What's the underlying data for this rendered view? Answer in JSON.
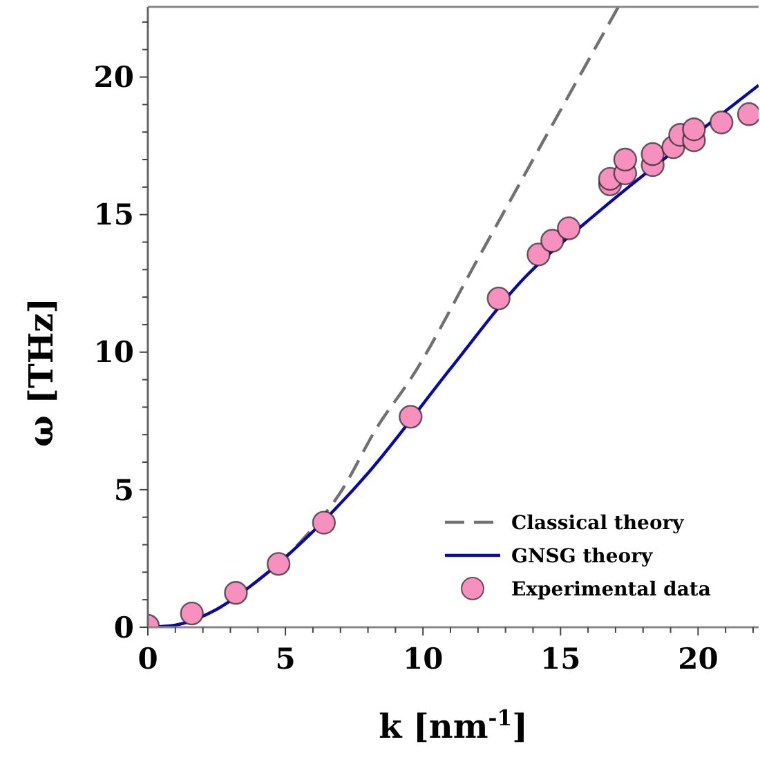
{
  "chart_data": {
    "type": "line",
    "xlabel": "k [nm$^{-1}$]",
    "ylabel": "ω [THz]",
    "xlim": [
      0,
      22.2
    ],
    "ylim": [
      0,
      22.55
    ],
    "xticks": [
      0,
      {
        "value": 1,
        "label": null
      },
      {
        "value": 2,
        "label": null
      },
      {
        "value": 3,
        "label": null
      },
      {
        "value": 4,
        "label": null
      },
      5,
      {
        "value": 6,
        "label": null
      },
      {
        "value": 7,
        "label": null
      },
      {
        "value": 8,
        "label": null
      },
      {
        "value": 9,
        "label": null
      },
      10,
      {
        "value": 11,
        "label": null
      },
      {
        "value": 12,
        "label": null
      },
      {
        "value": 13,
        "label": null
      },
      {
        "value": 14,
        "label": null
      },
      15,
      {
        "value": 16,
        "label": null
      },
      {
        "value": 17,
        "label": null
      },
      {
        "value": 18,
        "label": null
      },
      {
        "value": 19,
        "label": null
      },
      20,
      {
        "value": 21,
        "label": null
      },
      {
        "value": 22,
        "label": null
      }
    ],
    "yticks": [
      0,
      {
        "value": 1,
        "label": null
      },
      {
        "value": 2,
        "label": null
      },
      {
        "value": 3,
        "label": null
      },
      {
        "value": 4,
        "label": null
      },
      5,
      {
        "value": 6,
        "label": null
      },
      {
        "value": 7,
        "label": null
      },
      {
        "value": 8,
        "label": null
      },
      {
        "value": 9,
        "label": null
      },
      10,
      {
        "value": 11,
        "label": null
      },
      {
        "value": 12,
        "label": null
      },
      {
        "value": 13,
        "label": null
      },
      {
        "value": 14,
        "label": null
      },
      15,
      {
        "value": 16,
        "label": null
      },
      {
        "value": 17,
        "label": null
      },
      {
        "value": 18,
        "label": null
      },
      {
        "value": 19,
        "label": null
      },
      20,
      {
        "value": 21,
        "label": null
      },
      {
        "value": 22,
        "label": null
      }
    ],
    "grid": false,
    "legend": "bottom right",
    "series": [
      {
        "name": "Classical theory",
        "line_style": "dashed",
        "color": "#707070",
        "x": [
          0,
          1,
          2.5,
          4,
          5.5,
          7,
          8.35,
          9.6,
          12,
          14.5,
          17.1
        ],
        "values": [
          0,
          0.08,
          0.65,
          1.7,
          3.05,
          4.9,
          7.3,
          9.1,
          13.4,
          17.9,
          22.55
        ]
      },
      {
        "name": "GNSG theory",
        "line_style": "solid",
        "color": "#0a0aa0",
        "x": [
          0,
          1,
          2.5,
          4,
          5.5,
          8,
          11,
          13.5,
          16.5,
          19.5,
          22.2
        ],
        "values": [
          0,
          0.08,
          0.65,
          1.7,
          3.0,
          5.6,
          9.4,
          12.5,
          15.2,
          17.6,
          19.7
        ]
      },
      {
        "name": "Experimental data",
        "type": "scatter",
        "marker": "circle",
        "color": "#f78fbf",
        "x": [
          0,
          1.6,
          3.2,
          4.75,
          6.4,
          9.55,
          12.75,
          14.2,
          14.7,
          15.3,
          16.8,
          16.8,
          17.35,
          17.35,
          18.35,
          18.35,
          19.1,
          19.35,
          19.85,
          19.85,
          20.85,
          21.85
        ],
        "values": [
          0.05,
          0.5,
          1.25,
          2.3,
          3.8,
          7.65,
          11.95,
          13.55,
          14.05,
          14.5,
          16.1,
          16.3,
          16.5,
          17.0,
          16.8,
          17.2,
          17.45,
          17.9,
          17.7,
          18.1,
          18.35,
          18.65
        ]
      }
    ]
  }
}
